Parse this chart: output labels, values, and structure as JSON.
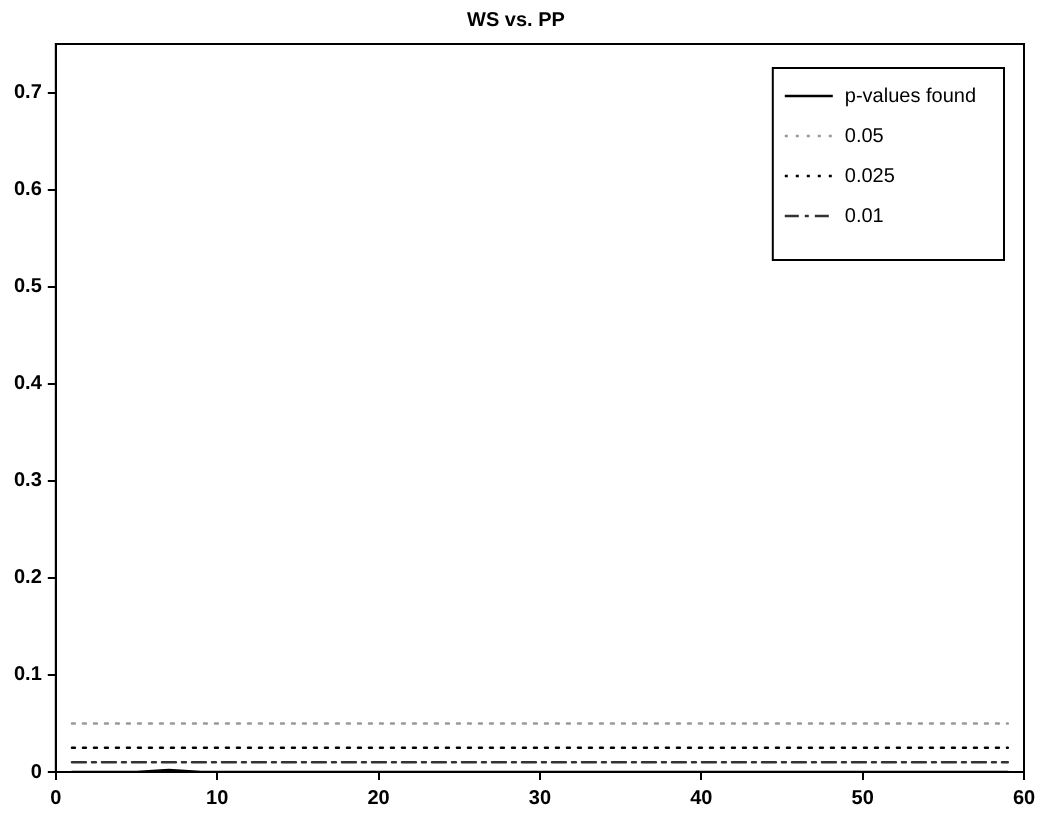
{
  "chart_data": {
    "type": "line",
    "title": "WS vs. PP",
    "xlim": [
      0,
      60
    ],
    "xticks": [
      0,
      10,
      20,
      30,
      40,
      50,
      60
    ],
    "ylim": [
      0,
      0.75
    ],
    "yticks": [
      0,
      0.1,
      0.2,
      0.3,
      0.4,
      0.5,
      0.6,
      0.7
    ],
    "grid": false,
    "legend": "top right",
    "marker": "none",
    "series": [
      {
        "name": "p-values found",
        "color": "#000000",
        "line_style": "solid",
        "x": [
          1,
          5,
          6,
          7,
          8,
          9,
          59
        ],
        "values": [
          0,
          0,
          0.001,
          0.002,
          0.001,
          0,
          0
        ]
      },
      {
        "name": "0.05",
        "color": "#999999",
        "line_style": "dotted",
        "x": [
          1,
          59
        ],
        "values": [
          0.05,
          0.05
        ]
      },
      {
        "name": "0.025",
        "color": "#000000",
        "line_style": "dotted",
        "x": [
          1,
          59
        ],
        "values": [
          0.025,
          0.025
        ]
      },
      {
        "name": "0.01",
        "color": "#333333",
        "line_style": "dashed",
        "x": [
          1,
          59
        ],
        "values": [
          0.01,
          0.01
        ]
      }
    ]
  }
}
